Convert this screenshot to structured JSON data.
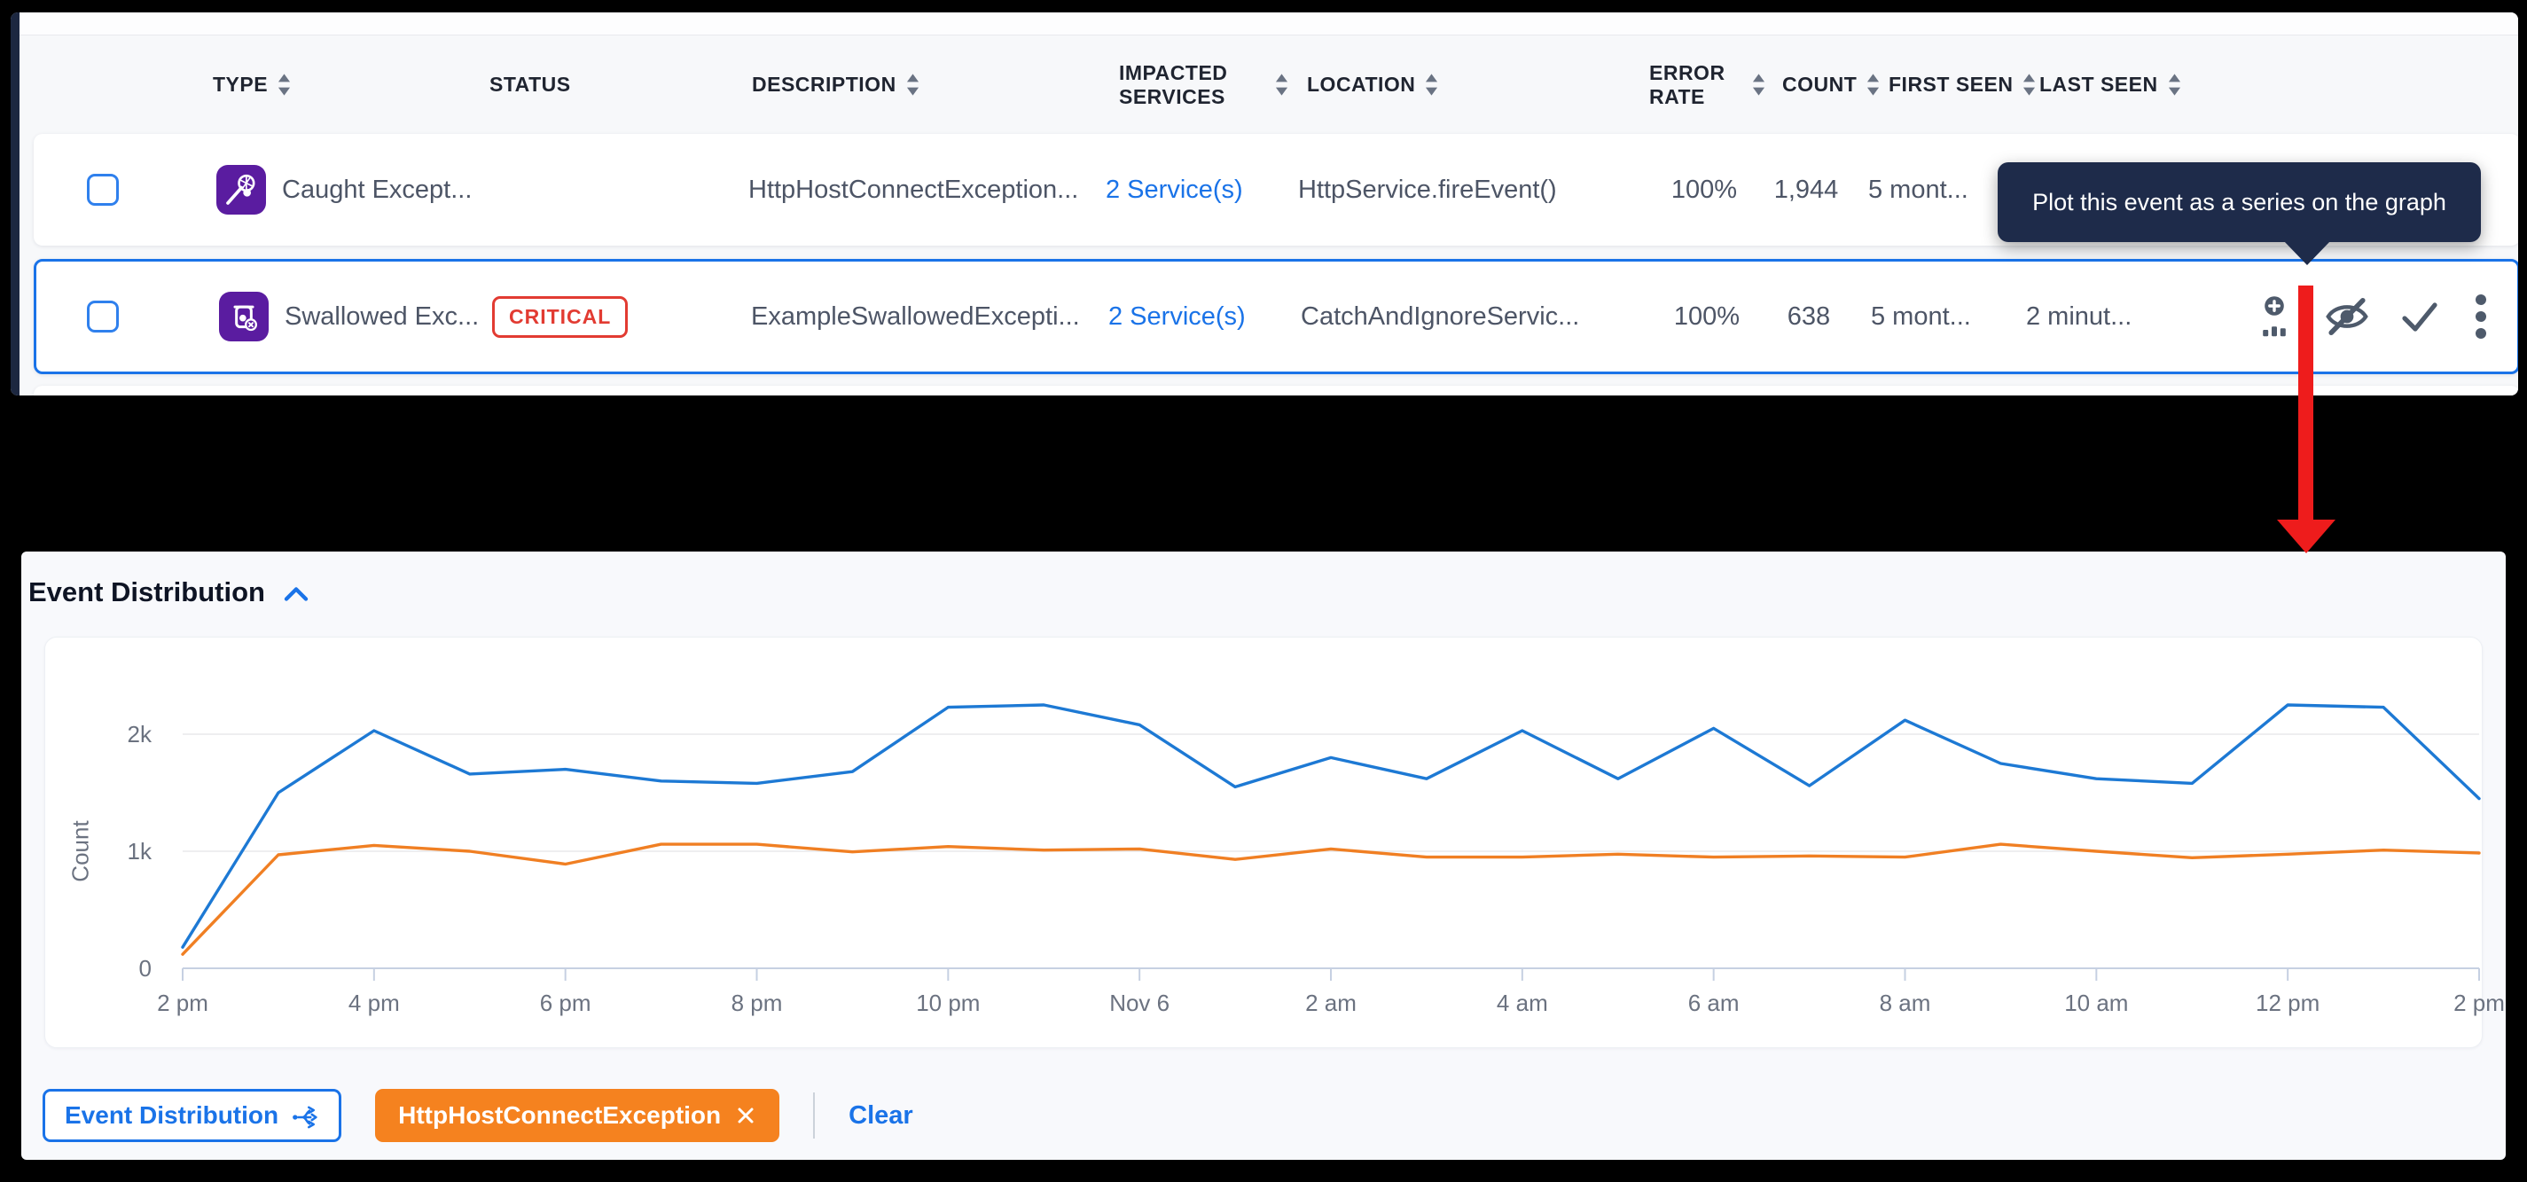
{
  "table": {
    "columns": [
      {
        "label": "TYPE",
        "sortable": true
      },
      {
        "label": "STATUS",
        "sortable": false
      },
      {
        "label": "DESCRIPTION",
        "sortable": true
      },
      {
        "label": "IMPACTED SERVICES",
        "sortable": true
      },
      {
        "label": "LOCATION",
        "sortable": true
      },
      {
        "label": "ERROR RATE",
        "sortable": true
      },
      {
        "label": "COUNT",
        "sortable": true
      },
      {
        "label": "FIRST SEEN",
        "sortable": true
      },
      {
        "label": "LAST SEEN",
        "sortable": true
      }
    ],
    "rows": [
      {
        "type": "Caught Except...",
        "status": "",
        "description": "HttpHostConnectException...",
        "impacted_services": "2 Service(s)",
        "location": "HttpService.fireEvent()",
        "error_rate": "100%",
        "count": "1,944",
        "first_seen": "5 mont..."
      },
      {
        "type": "Swallowed Exc...",
        "status": "CRITICAL",
        "description": "ExampleSwallowedExcepti...",
        "impacted_services": "2 Service(s)",
        "location": "CatchAndIgnoreServic...",
        "error_rate": "100%",
        "count": "638",
        "first_seen": "5 mont...",
        "last_seen": "2 minut..."
      }
    ]
  },
  "tooltip": {
    "text": "Plot this event as a series on the graph"
  },
  "chart_section": {
    "title": "Event Distribution"
  },
  "chart_data": {
    "type": "line",
    "title": "Event Distribution",
    "xlabel": "",
    "ylabel": "Count",
    "ylim": [
      0,
      2400
    ],
    "grid": "horizontal",
    "legend_position": "none",
    "y_ticks": [
      "0",
      "1k",
      "2k"
    ],
    "x_tick_labels": [
      "2 pm",
      "4 pm",
      "6 pm",
      "8 pm",
      "10 pm",
      "Nov 6",
      "2 am",
      "4 am",
      "6 am",
      "8 am",
      "10 am",
      "12 pm",
      "2 pm"
    ],
    "x": [
      "2 pm",
      "3 pm",
      "4 pm",
      "5 pm",
      "6 pm",
      "7 pm",
      "8 pm",
      "9 pm",
      "10 pm",
      "11 pm",
      "Nov 6 12 am",
      "1 am",
      "2 am",
      "3 am",
      "4 am",
      "5 am",
      "6 am",
      "7 am",
      "8 am",
      "9 am",
      "10 am",
      "11 am",
      "12 pm",
      "1 pm",
      "2 pm"
    ],
    "series": [
      {
        "name": "Event Distribution",
        "color": "#1d79d4",
        "values": [
          180,
          1500,
          2030,
          1660,
          1700,
          1600,
          1580,
          1680,
          2230,
          2250,
          2080,
          1550,
          1800,
          1620,
          2030,
          1620,
          2050,
          1560,
          2120,
          1750,
          1620,
          1580,
          2250,
          2230,
          1450
        ]
      },
      {
        "name": "HttpHostConnectException",
        "color": "#f07f23",
        "values": [
          120,
          970,
          1050,
          1000,
          890,
          1060,
          1060,
          995,
          1040,
          1010,
          1020,
          930,
          1020,
          950,
          950,
          975,
          950,
          960,
          950,
          1060,
          1000,
          945,
          975,
          1010,
          985
        ]
      }
    ]
  },
  "footer": {
    "series_button_label": "Event Distribution",
    "filter_chip_label": "HttpHostConnectException",
    "clear_label": "Clear"
  },
  "colors": {
    "accent_blue": "#1a73e8",
    "series_blue": "#1d79d4",
    "series_orange": "#f07f23",
    "critical_red": "#e23b32",
    "chip_orange": "#f5821f",
    "tooltip_bg": "#1e2b4a",
    "type_icon_purple": "#5a1ca0",
    "annotation_red": "#ee1c1c"
  }
}
